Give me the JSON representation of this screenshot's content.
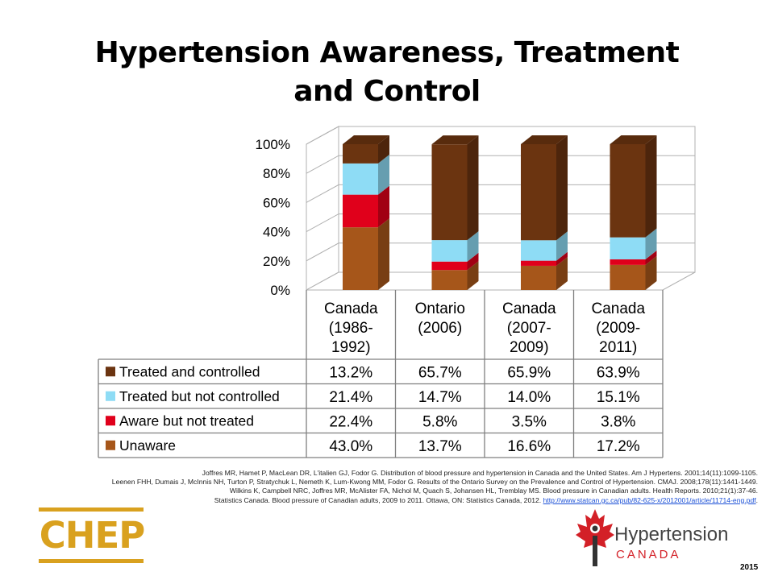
{
  "title": "Hypertension Awareness, Treatment and Control",
  "chart_data": {
    "type": "bar",
    "stacked": true,
    "three_d": true,
    "categories": [
      [
        "Canada",
        "(1986-",
        "1992)"
      ],
      [
        "Ontario",
        "(2006)"
      ],
      [
        "Canada",
        "(2007-",
        "2009)"
      ],
      [
        "Canada",
        "(2009-",
        "2011)"
      ]
    ],
    "ylim": [
      0,
      100
    ],
    "yticks": [
      "0%",
      "20%",
      "40%",
      "60%",
      "80%",
      "100%"
    ],
    "ytick_values": [
      0,
      20,
      40,
      60,
      80,
      100
    ],
    "grid": true,
    "legend_placement": "data-table",
    "series": [
      {
        "name": "Unaware",
        "color": "#a6561a",
        "values": [
          43.0,
          13.7,
          16.6,
          17.2
        ],
        "labels": [
          "43.0%",
          "13.7%",
          "16.6%",
          "17.2%"
        ]
      },
      {
        "name": "Aware but not treated",
        "color": "#e0001b",
        "values": [
          22.4,
          5.8,
          3.5,
          3.8
        ],
        "labels": [
          "22.4%",
          "5.8%",
          "3.5%",
          "3.8%"
        ]
      },
      {
        "name": "Treated but not controlled",
        "color": "#8edcf5",
        "values": [
          21.4,
          14.7,
          14.0,
          15.1
        ],
        "labels": [
          "21.4%",
          "14.7%",
          "14.0%",
          "15.1%"
        ]
      },
      {
        "name": "Treated and controlled",
        "color": "#6b3410",
        "values": [
          13.2,
          65.7,
          65.9,
          63.9
        ],
        "labels": [
          "13.2%",
          "65.7%",
          "65.9%",
          "63.9%"
        ]
      }
    ]
  },
  "references": [
    {
      "text": "Joffres MR, Hamet P, MacLean DR, L'italien GJ, Fodor G. Distribution of blood pressure and hypertension in Canada and the United States. Am J Hypertens. 2001;14(11):1099-1105."
    },
    {
      "text": "Leenen FHH, Dumais J, McInnis NH, Turton P, Stratychuk L, Nemeth K, Lum-Kwong MM, Fodor G. Results of the Ontario Survey on the Prevalence and Control of Hypertension. CMAJ. 2008;178(11):1441-1449."
    },
    {
      "text": "Wilkins K, Campbell NRC, Joffres MR, McAlister FA, Nichol M, Quach S, Johansen HL, Tremblay MS. Blood pressure in Canadian adults. Health Reports. 2010;21(1):37-46."
    },
    {
      "text": "Statistics Canada. Blood pressure of Canadian adults, 2009 to 2011. Ottawa, ON: Statistics Canada, 2012. ",
      "link": "http://www.statcan.gc.ca/pub/82-625-x/2012001/article/11714-eng.pdf",
      "suffix": "."
    }
  ],
  "logos": {
    "chep": "CHEP",
    "hc_name": "Hypertension",
    "hc_sub": "CANADA"
  },
  "year": "2015"
}
